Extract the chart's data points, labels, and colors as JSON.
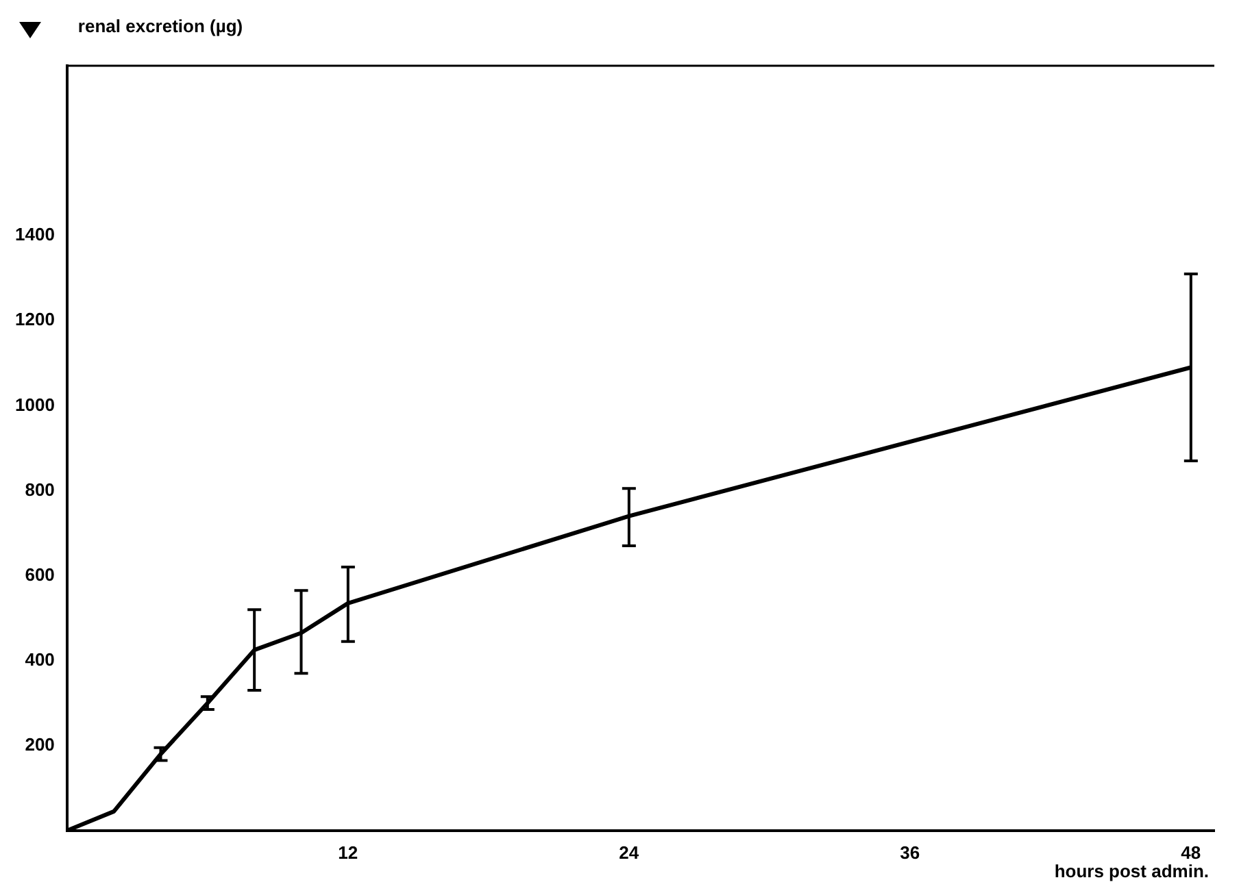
{
  "chart_data": {
    "type": "line",
    "ylabel": "renal excretion (µg)",
    "xlabel": "hours post admin.",
    "x": [
      0,
      2,
      4,
      6,
      8,
      10,
      12,
      24,
      48
    ],
    "values": [
      0,
      45,
      180,
      300,
      425,
      465,
      535,
      740,
      1090
    ],
    "errors": [
      null,
      null,
      15,
      15,
      [
        330,
        520
      ],
      [
        370,
        565
      ],
      [
        445,
        620
      ],
      [
        670,
        805
      ],
      [
        870,
        1310
      ]
    ],
    "color": "#000000",
    "xlim": [
      0,
      49
    ],
    "ylim": [
      0,
      1800
    ],
    "xticks": [
      12,
      24,
      36,
      48
    ],
    "yticks": [
      200,
      400,
      600,
      800,
      1000,
      1200,
      1400
    ],
    "grid": false,
    "legend": false,
    "marker": "none",
    "line_style": "solid"
  }
}
